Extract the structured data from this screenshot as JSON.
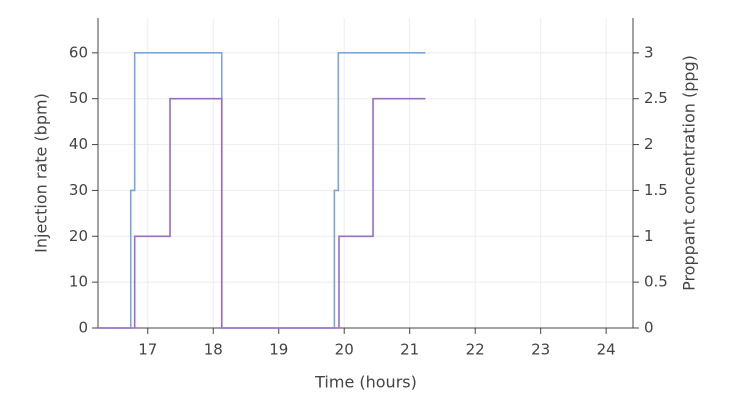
{
  "chart_data": {
    "type": "line",
    "shape": "hv",
    "xlabel": "Time (hours)",
    "ylabel": "Injection rate (bpm)",
    "y2label": "Proppant concentration (ppg)",
    "xlim": [
      16.24,
      24.41
    ],
    "xticks": [
      17,
      18,
      19,
      20,
      21,
      22,
      23,
      24
    ],
    "ylim": [
      0,
      67.6
    ],
    "yticks": [
      0,
      10,
      20,
      30,
      40,
      50,
      60
    ],
    "y2lim": [
      0,
      3.38
    ],
    "y2ticks": [
      0,
      0.5,
      1,
      1.5,
      2,
      2.5,
      3
    ],
    "grid": true,
    "series": [
      {
        "name": "Injection rate",
        "color": "#7aa6e0",
        "x": [
          16.24,
          16.74,
          16.8,
          18.13,
          19.85,
          19.91,
          21.24
        ],
        "values": [
          0,
          30,
          60,
          0,
          30,
          60,
          60
        ]
      },
      {
        "name": "Proppant concentration",
        "color": "#9a6cc6",
        "axis": "y2",
        "x": [
          16.24,
          16.8,
          17.34,
          18.13,
          19.92,
          20.44,
          21.24
        ],
        "values": [
          0,
          1,
          2.5,
          0,
          1,
          2.5,
          2.5
        ]
      }
    ]
  }
}
